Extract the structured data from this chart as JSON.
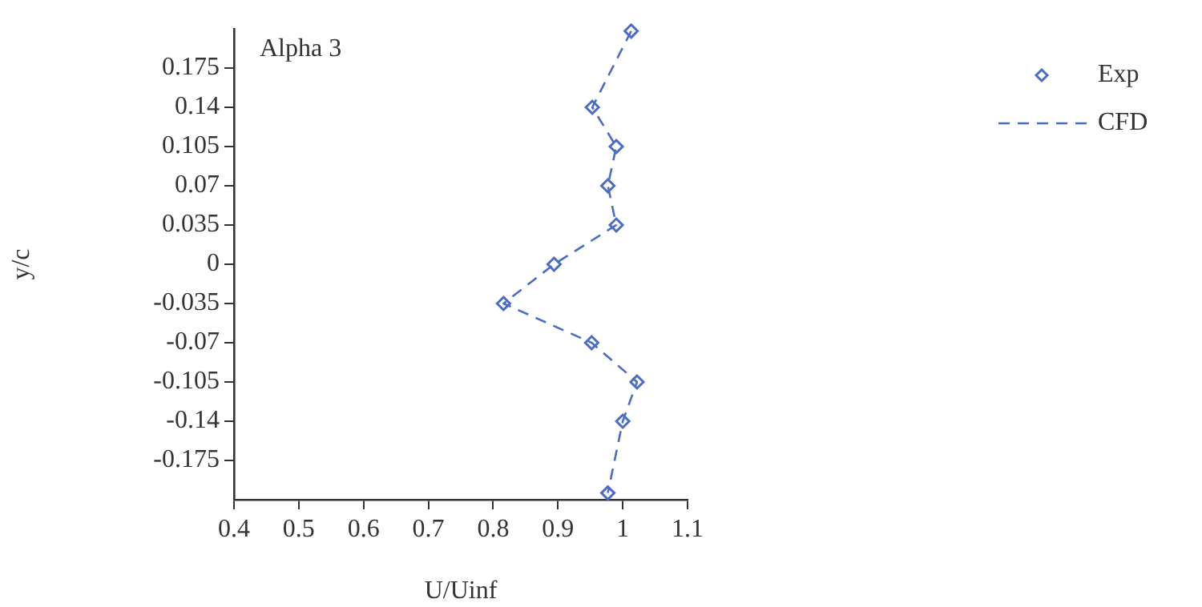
{
  "chart_data": {
    "type": "scatter",
    "xlabel": "U/Uinf",
    "ylabel": "y/c",
    "annotations": [
      "Alpha 3"
    ],
    "xlim": [
      0.4,
      1.1
    ],
    "xticks": [
      0.4,
      0.5,
      0.6,
      0.7,
      0.8,
      0.9,
      1,
      1.1
    ],
    "ylim": [
      -0.21,
      0.21
    ],
    "yticks": [
      -0.175,
      -0.14,
      -0.105,
      -0.07,
      -0.035,
      0,
      0.035,
      0.07,
      0.105,
      0.14,
      0.175
    ],
    "grid": false,
    "legend": "top right",
    "series": [
      {
        "name": "Exp",
        "type": "scatter",
        "marker": "diamond",
        "color": "#4a6cc8",
        "x": [
          1.013,
          0.953,
          0.99,
          0.977,
          0.99,
          0.894,
          0.816,
          0.952,
          1.022,
          1.0,
          0.977
        ],
        "values": [
          0.208,
          0.14,
          0.105,
          0.07,
          0.035,
          0,
          -0.035,
          -0.07,
          -0.105,
          -0.14,
          -0.204
        ]
      },
      {
        "name": "CFD",
        "type": "line",
        "line_style": "dashed",
        "color": "#4a6cc8",
        "x": [
          1.013,
          0.953,
          0.99,
          0.977,
          0.99,
          0.894,
          0.816,
          0.952,
          1.022,
          1.0,
          0.977
        ],
        "values": [
          0.208,
          0.14,
          0.105,
          0.07,
          0.035,
          0,
          -0.035,
          -0.07,
          -0.105,
          -0.14,
          -0.204
        ]
      }
    ]
  }
}
